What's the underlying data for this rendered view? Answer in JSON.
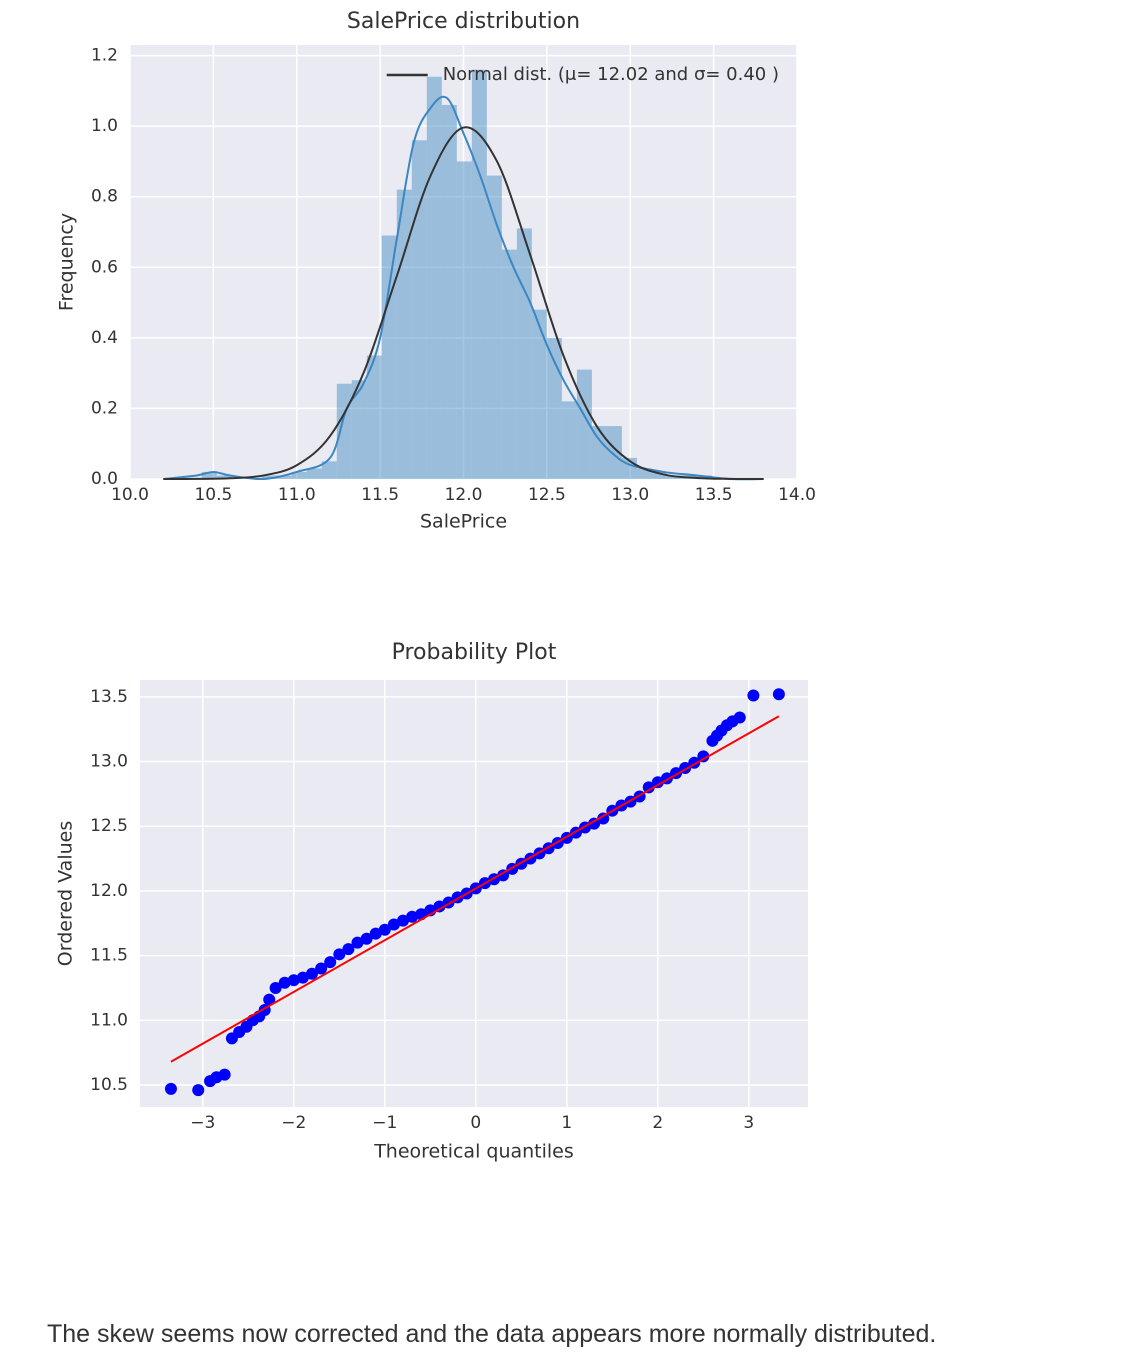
{
  "chart_data": [
    {
      "type": "histogram",
      "title": "SalePrice distribution",
      "x_label": "SalePrice",
      "y_label": "Frequency",
      "bins": [
        10.43,
        10.52,
        10.61,
        10.7,
        10.79,
        10.88,
        10.97,
        11.06,
        11.15,
        11.24,
        11.33,
        11.42,
        11.51,
        11.6,
        11.69,
        11.78,
        11.87,
        11.96,
        12.05,
        12.14,
        12.23,
        12.32,
        12.41,
        12.5,
        12.59,
        12.68,
        12.77,
        12.86,
        12.95,
        13.04,
        13.13,
        13.22,
        13.31,
        13.4,
        13.49,
        13.58
      ],
      "values": [
        0.02,
        0.01,
        0,
        0,
        0.01,
        0.01,
        0.02,
        0.03,
        0.05,
        0.27,
        0.28,
        0.35,
        0.69,
        0.82,
        0.96,
        1.14,
        1.06,
        0.9,
        1.16,
        0.86,
        0.65,
        0.71,
        0.48,
        0.4,
        0.22,
        0.31,
        0.15,
        0.15,
        0.06,
        0.03,
        0.02,
        0.01,
        0.01,
        0.01,
        0
      ],
      "color": "#3a87c2",
      "kde": {
        "color": "#3a87c2",
        "x": [
          10.2,
          10.4,
          10.5,
          10.6,
          10.8,
          11.0,
          11.2,
          11.3,
          11.4,
          11.5,
          11.6,
          11.7,
          11.8,
          11.9,
          12.0,
          12.1,
          12.2,
          12.3,
          12.4,
          12.5,
          12.6,
          12.7,
          12.8,
          12.9,
          13.0,
          13.2,
          13.4,
          13.6,
          13.8
        ],
        "values": [
          0,
          0.01,
          0.02,
          0.01,
          0,
          0.02,
          0.06,
          0.2,
          0.27,
          0.4,
          0.68,
          0.95,
          1.05,
          1.08,
          0.98,
          0.86,
          0.72,
          0.6,
          0.5,
          0.38,
          0.28,
          0.2,
          0.12,
          0.07,
          0.04,
          0.02,
          0.01,
          0,
          0
        ]
      },
      "series": [
        {
          "name": "Normal dist. (μ= 12.02 and σ= 0.40 )",
          "color": "#333333",
          "x": [
            10.2,
            10.4,
            10.6,
            10.8,
            11.0,
            11.2,
            11.4,
            11.6,
            11.8,
            12.0,
            12.2,
            12.4,
            12.6,
            12.8,
            13.0,
            13.2,
            13.4,
            13.6,
            13.8
          ],
          "values": [
            0,
            0.0003,
            0.002,
            0.01,
            0.039,
            0.122,
            0.3,
            0.575,
            0.857,
            0.996,
            0.901,
            0.635,
            0.349,
            0.149,
            0.05,
            0.013,
            0.003,
            0.0004,
            0
          ]
        }
      ],
      "xlim": [
        10,
        14
      ],
      "ylim": [
        0,
        1.23
      ],
      "xticks": [
        {
          "value": 10,
          "label": "10.0"
        },
        10.5,
        {
          "value": 11,
          "label": "11.0"
        },
        11.5,
        {
          "value": 12,
          "label": "12.0"
        },
        12.5,
        {
          "value": 13,
          "label": "13.0"
        },
        13.5,
        {
          "value": 14,
          "label": "14.0"
        }
      ],
      "yticks": [
        {
          "value": 0,
          "label": "0.0"
        },
        0.2,
        0.4,
        0.6,
        0.8,
        {
          "value": 1,
          "label": "1.0"
        },
        1.2
      ],
      "grid": true,
      "legend_loc": "upper right"
    },
    {
      "type": "scatter",
      "title": "Probability Plot",
      "x_label": "Theoretical quantiles",
      "y_label": "Ordered Values",
      "x": [
        -3.35,
        -3.05,
        -2.92,
        -2.85,
        -2.76,
        -2.68,
        -2.6,
        -2.52,
        -2.45,
        -2.38,
        -2.32,
        -2.27,
        -2.2,
        -2.1,
        -2.0,
        -1.9,
        -1.8,
        -1.7,
        -1.6,
        -1.5,
        -1.4,
        -1.3,
        -1.2,
        -1.1,
        -1.0,
        -0.9,
        -0.8,
        -0.7,
        -0.6,
        -0.5,
        -0.4,
        -0.3,
        -0.2,
        -0.1,
        0,
        0.1,
        0.2,
        0.3,
        0.4,
        0.5,
        0.6,
        0.7,
        0.8,
        0.9,
        1.0,
        1.1,
        1.2,
        1.3,
        1.4,
        1.5,
        1.6,
        1.7,
        1.8,
        1.9,
        2.0,
        2.1,
        2.2,
        2.3,
        2.4,
        2.5,
        2.6,
        2.65,
        2.7,
        2.76,
        2.82,
        2.9,
        3.05,
        3.33
      ],
      "values": [
        10.47,
        10.46,
        10.53,
        10.56,
        10.58,
        10.86,
        10.91,
        10.95,
        11.0,
        11.03,
        11.08,
        11.16,
        11.25,
        11.29,
        11.31,
        11.33,
        11.36,
        11.4,
        11.45,
        11.51,
        11.55,
        11.6,
        11.63,
        11.67,
        11.7,
        11.74,
        11.77,
        11.8,
        11.82,
        11.85,
        11.88,
        11.91,
        11.95,
        11.98,
        12.02,
        12.06,
        12.09,
        12.12,
        12.17,
        12.21,
        12.25,
        12.29,
        12.33,
        12.37,
        12.41,
        12.45,
        12.49,
        12.52,
        12.56,
        12.62,
        12.66,
        12.69,
        12.73,
        12.8,
        12.84,
        12.87,
        12.91,
        12.95,
        12.99,
        13.04,
        13.16,
        13.2,
        13.24,
        13.28,
        13.31,
        13.34,
        13.51,
        13.52
      ],
      "color": "#0000ff",
      "fit": {
        "color": "#ff0000",
        "x": [
          -3.35,
          3.33
        ],
        "values": [
          10.68,
          13.35
        ]
      },
      "xlim": [
        -3.69,
        3.65
      ],
      "ylim": [
        10.33,
        13.63
      ],
      "xticks": [
        {
          "value": -3,
          "label": "−3"
        },
        {
          "value": -2,
          "label": "−2"
        },
        {
          "value": -1,
          "label": "−1"
        },
        0,
        1,
        2,
        3
      ],
      "yticks": [
        10.5,
        {
          "value": 11,
          "label": "11.0"
        },
        11.5,
        {
          "value": 12,
          "label": "12.0"
        },
        12.5,
        {
          "value": 13,
          "label": "13.0"
        },
        13.5
      ],
      "grid": true
    }
  ],
  "caption": "The skew seems now corrected and the data appears more normally distributed."
}
